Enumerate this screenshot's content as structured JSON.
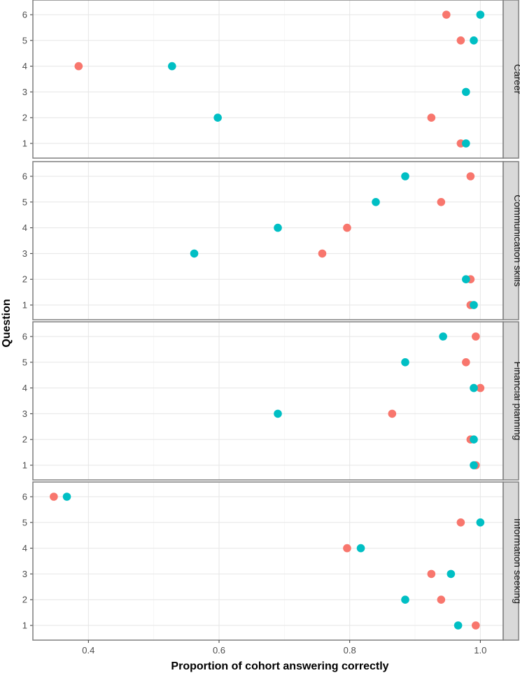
{
  "chart_data": {
    "type": "scatter",
    "xlabel": "Proportion of cohort answering correctly",
    "ylabel": "Question",
    "xlim": [
      0.315,
      1.035
    ],
    "xticks": [
      0.4,
      0.6,
      0.8,
      1.0
    ],
    "xtick_labels": [
      "0.4",
      "0.6",
      "0.8",
      "1.0"
    ],
    "questions": [
      "1",
      "2",
      "3",
      "4",
      "5",
      "6"
    ],
    "grid": true,
    "legend": "none",
    "series_colors": [
      "#f8766d",
      "#00bfc4"
    ],
    "panels": [
      {
        "label": "Career",
        "red": [
          [
            1,
            0.97
          ],
          [
            2,
            0.925
          ],
          [
            4,
            0.385
          ],
          [
            5,
            0.97
          ],
          [
            6,
            0.948
          ]
        ],
        "teal": [
          [
            1,
            0.978
          ],
          [
            2,
            0.598
          ],
          [
            3,
            0.978
          ],
          [
            4,
            0.528
          ],
          [
            5,
            0.99
          ],
          [
            6,
            1.0
          ]
        ]
      },
      {
        "label": "Communication skills",
        "red": [
          [
            1,
            0.985
          ],
          [
            2,
            0.985
          ],
          [
            3,
            0.758
          ],
          [
            4,
            0.796
          ],
          [
            5,
            0.94
          ],
          [
            6,
            0.985
          ]
        ],
        "teal": [
          [
            1,
            0.99
          ],
          [
            2,
            0.978
          ],
          [
            3,
            0.562
          ],
          [
            4,
            0.69
          ],
          [
            5,
            0.84
          ],
          [
            6,
            0.885
          ]
        ]
      },
      {
        "label": "Financial planning",
        "red": [
          [
            1,
            0.993
          ],
          [
            2,
            0.985
          ],
          [
            3,
            0.865
          ],
          [
            4,
            1.0
          ],
          [
            5,
            0.978
          ],
          [
            6,
            0.993
          ]
        ],
        "teal": [
          [
            1,
            0.99
          ],
          [
            2,
            0.99
          ],
          [
            3,
            0.69
          ],
          [
            4,
            0.99
          ],
          [
            5,
            0.885
          ],
          [
            6,
            0.943
          ]
        ]
      },
      {
        "label": "Information seeking",
        "red": [
          [
            1,
            0.993
          ],
          [
            2,
            0.94
          ],
          [
            3,
            0.925
          ],
          [
            4,
            0.796
          ],
          [
            5,
            0.97
          ],
          [
            6,
            0.347
          ]
        ],
        "teal": [
          [
            1,
            0.966
          ],
          [
            2,
            0.885
          ],
          [
            3,
            0.955
          ],
          [
            4,
            0.817
          ],
          [
            5,
            1.0
          ],
          [
            6,
            0.367
          ]
        ]
      }
    ]
  }
}
